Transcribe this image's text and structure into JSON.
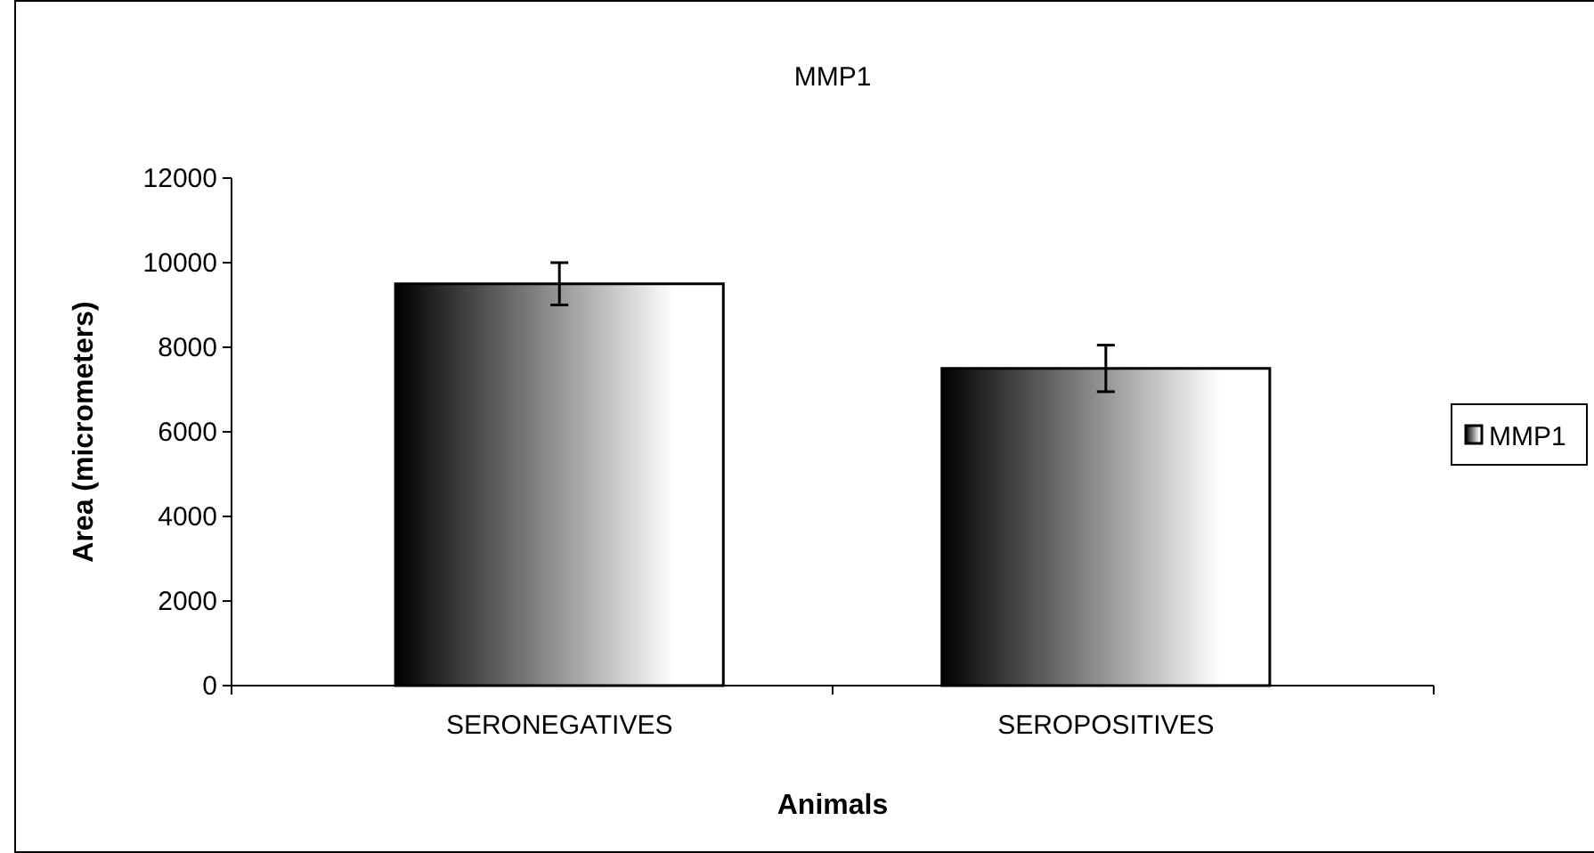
{
  "chart_data": {
    "type": "bar",
    "title": "MMP1",
    "xlabel": "Animals",
    "ylabel": "Area (micrometers)",
    "categories": [
      "SERONEGATIVES",
      "SEROPOSITIVES"
    ],
    "series": [
      {
        "name": "MMP1",
        "color": "#000000",
        "values": [
          9500,
          7500
        ],
        "errors": [
          500,
          550
        ]
      }
    ],
    "ylim": [
      0,
      12000
    ],
    "yticks": [
      0,
      2000,
      4000,
      6000,
      8000,
      10000,
      12000
    ],
    "grid": false,
    "legend": "right"
  }
}
